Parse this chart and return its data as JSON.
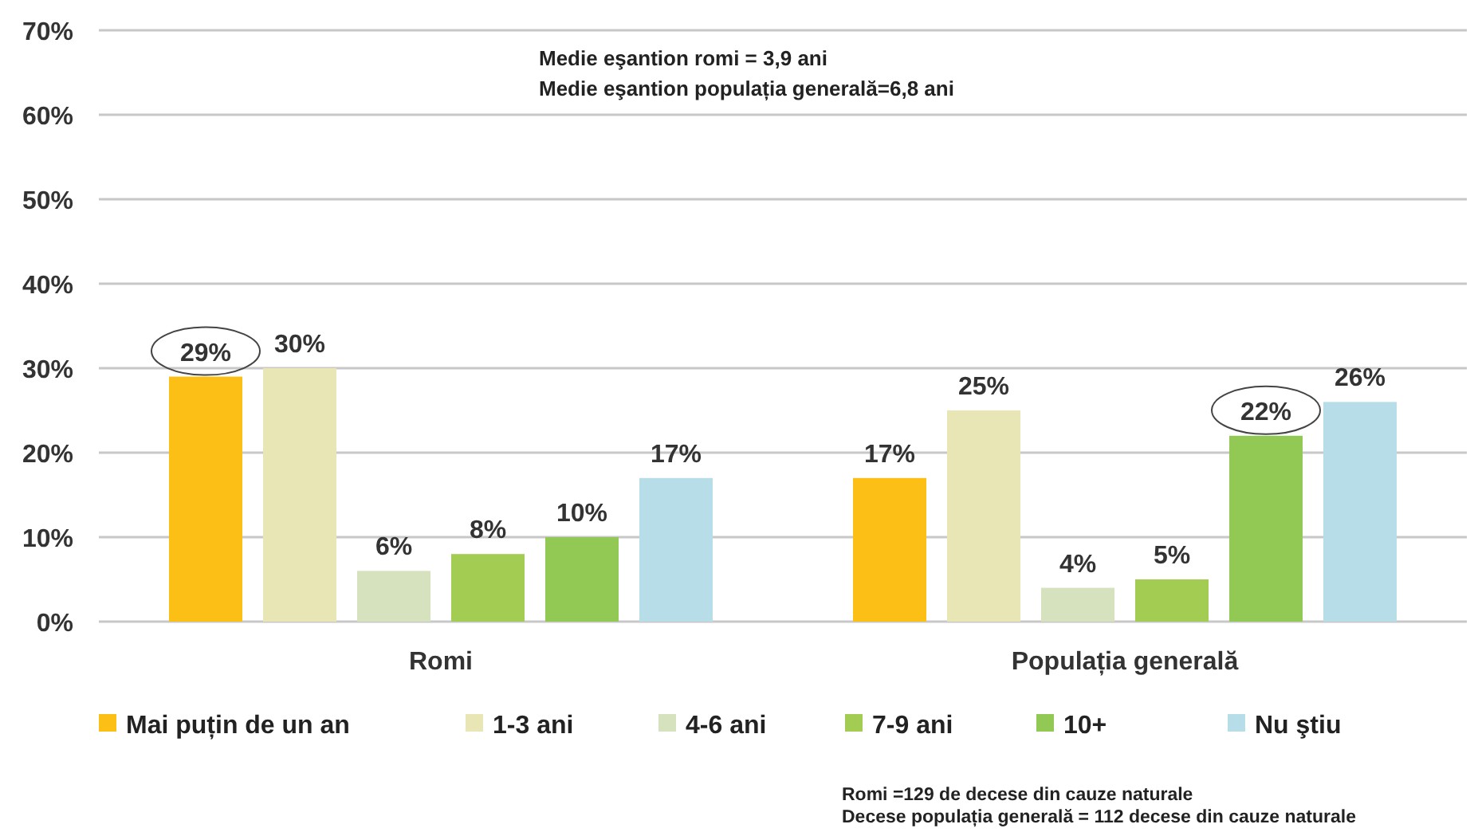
{
  "chart_data": {
    "type": "bar",
    "categories": [
      "Romi",
      "Populația generală"
    ],
    "series": [
      {
        "name": "Mai puțin de un an",
        "color": "#fbbf16",
        "values": [
          29,
          17
        ],
        "value_labels": [
          "29%",
          "17%"
        ]
      },
      {
        "name": "1-3 ani",
        "color": "#e8e6b4",
        "values": [
          30,
          25
        ],
        "value_labels": [
          "30%",
          "25%"
        ]
      },
      {
        "name": "4-6 ani",
        "color": "#d6e2bd",
        "values": [
          6,
          4
        ],
        "value_labels": [
          "6%",
          "4%"
        ]
      },
      {
        "name": "7-9 ani",
        "color": "#a3cc53",
        "values": [
          8,
          5
        ],
        "value_labels": [
          "8%",
          "5%"
        ]
      },
      {
        "name": "10+",
        "color": "#92c954",
        "values": [
          10,
          22
        ],
        "value_labels": [
          "10%",
          "22%"
        ]
      },
      {
        "name": "Nu ştiu",
        "color": "#b7dde8",
        "values": [
          17,
          26
        ],
        "value_labels": [
          "17%",
          "26%"
        ]
      }
    ],
    "ylim": [
      0,
      70
    ],
    "yticks": [
      {
        "value": 0,
        "label": "0%"
      },
      {
        "value": 10,
        "label": "10%"
      },
      {
        "value": 20,
        "label": "20%"
      },
      {
        "value": 30,
        "label": "30%"
      },
      {
        "value": 40,
        "label": "40%"
      },
      {
        "value": 50,
        "label": "50%"
      },
      {
        "value": 60,
        "label": "60%"
      },
      {
        "value": 70,
        "label": "70%"
      }
    ],
    "grid": "y",
    "legend": "bottom",
    "annotations": [
      "Medie eşantion romi = 3,9 ani",
      "Medie eşantion populația generală=6,8 ani",
      "Romi =129 de decese din cauze naturale",
      "Decese populația generală = 112 decese din cauze naturale"
    ]
  }
}
